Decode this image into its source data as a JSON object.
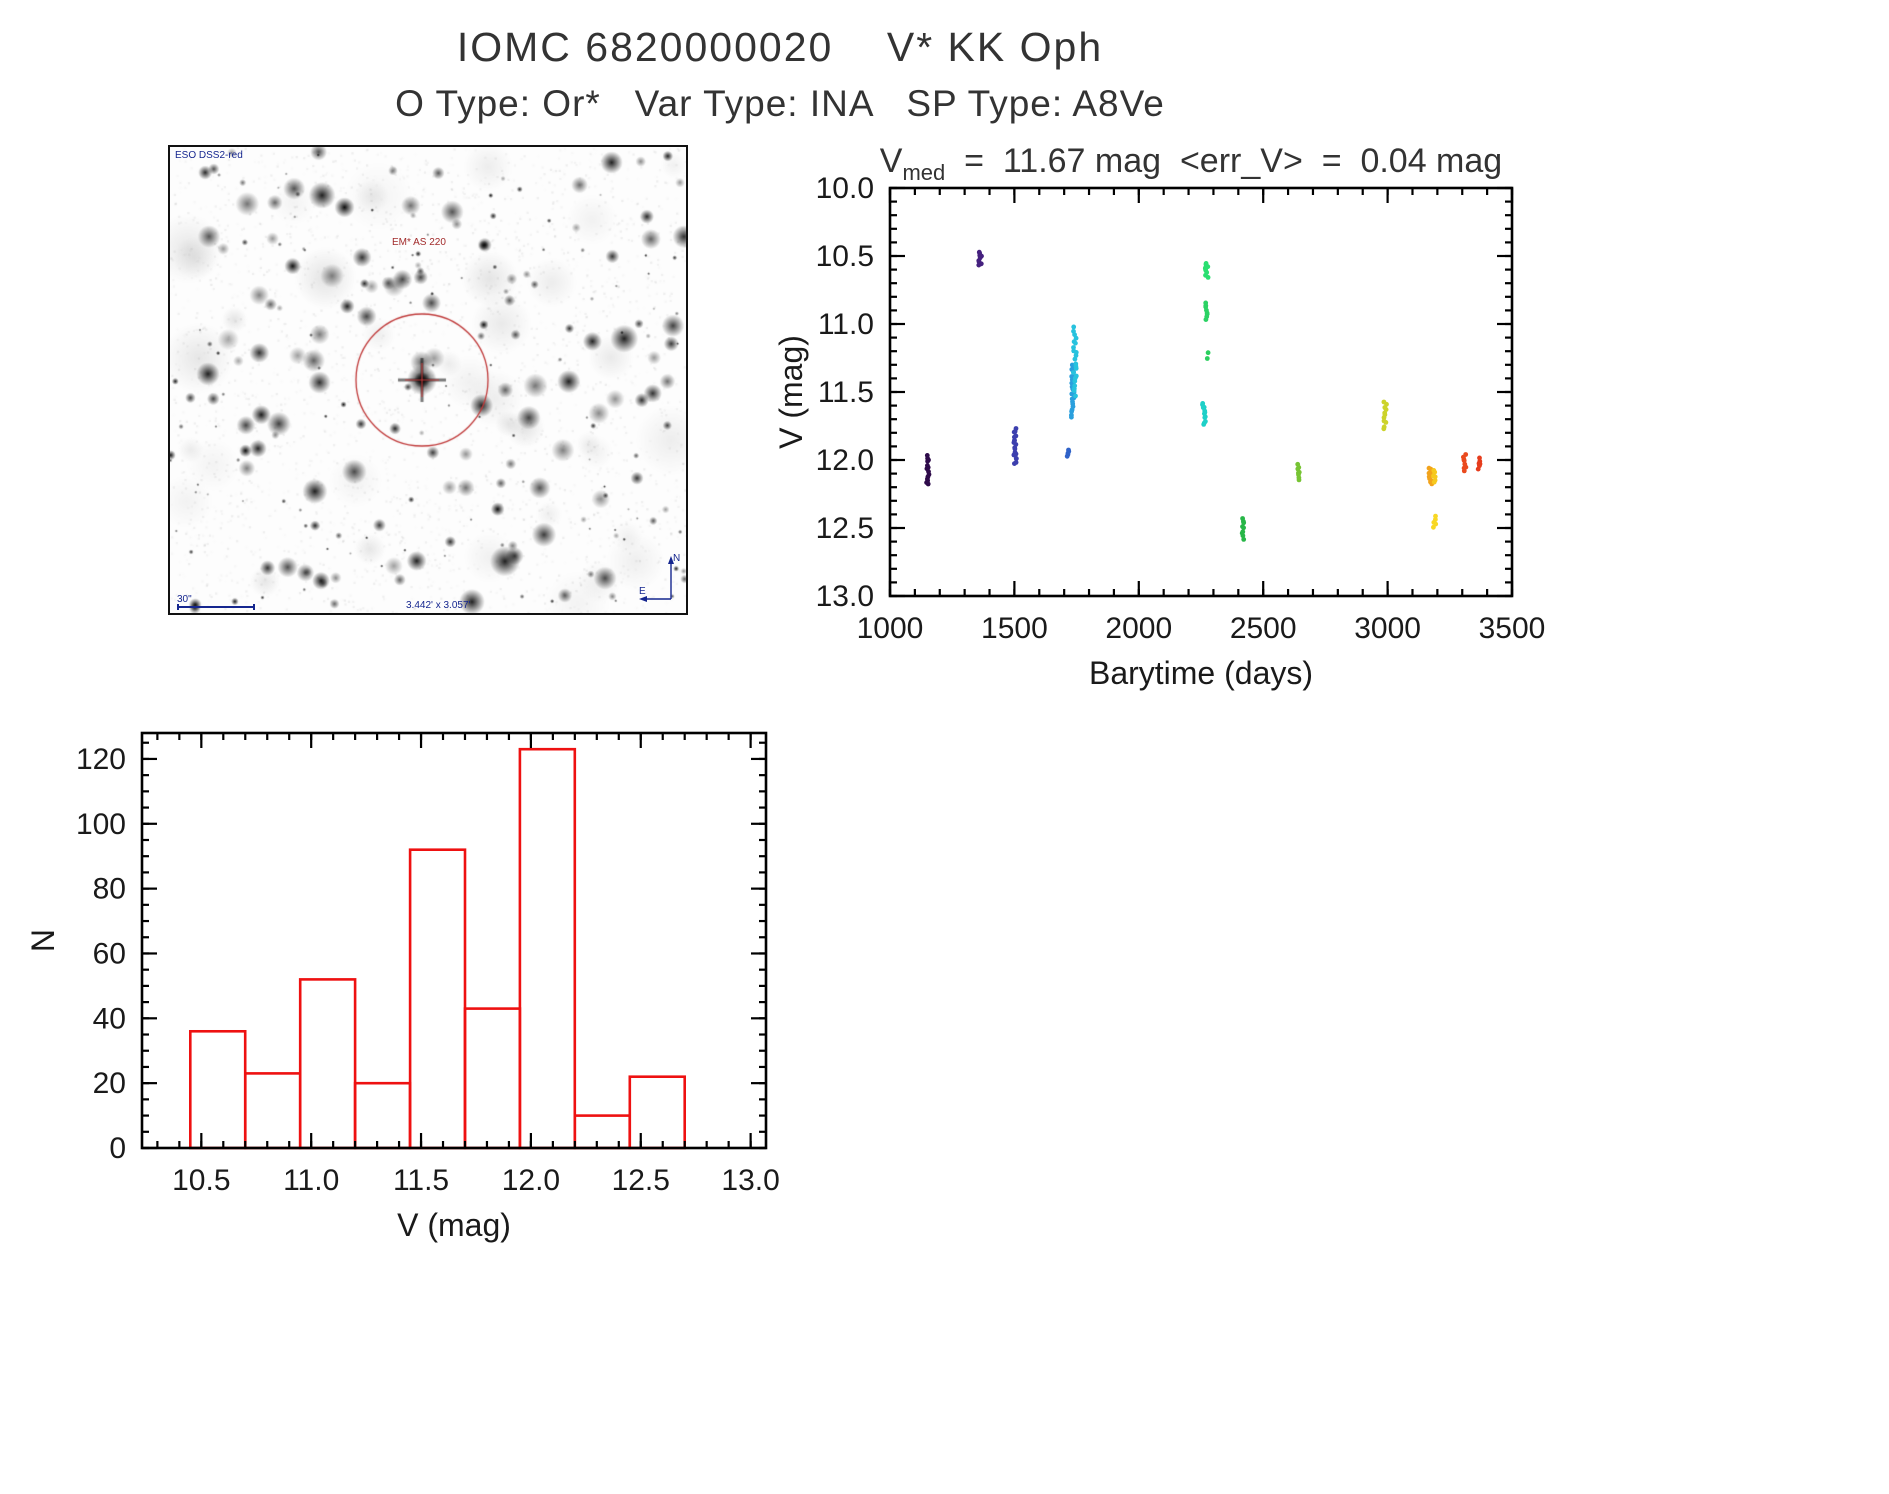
{
  "page": {
    "title": "IOMC 6820000020    V* KK Oph",
    "subtitle": "O Type: Or*   Var Type: INA   SP Type: A8Ve"
  },
  "finder_image": {
    "survey_label": "ESO DSS2-red",
    "target_label": "EM* AS 220",
    "scale_bar_label": "30\"",
    "size_label": "3.442' x 3.057'",
    "compass_north": "N",
    "compass_east": "E",
    "circle_color": "#c03a3a",
    "annotation_color": "#15268f",
    "target_label_color": "#a22b2b"
  },
  "lightcurve": {
    "title_v": "V",
    "title_sub": "med",
    "title_rest": "  =  11.67 mag  <err_V>  =  0.04 mag"
  },
  "chart_data": [
    {
      "type": "scatter",
      "title": "V_med = 11.67 mag  <err_V> = 0.04 mag",
      "xlabel": "Barytime (days)",
      "ylabel": "V (mag)",
      "xlim": [
        1000,
        3500
      ],
      "ylim": [
        10.0,
        13.0
      ],
      "y_increases_downward": true,
      "xticks": [
        1000,
        1500,
        2000,
        2500,
        3000,
        3500
      ],
      "yticks": [
        10.0,
        10.5,
        11.0,
        11.5,
        12.0,
        12.5,
        13.0
      ],
      "x_minor": 100,
      "y_minor": 0.1,
      "legend": "none",
      "grid": false,
      "clusters": [
        {
          "x": 1153,
          "y_min": 11.97,
          "y_max": 12.18,
          "n": 14,
          "color": "#2e0b4a"
        },
        {
          "x": 1362,
          "y_min": 10.47,
          "y_max": 10.56,
          "n": 9,
          "color": "#45217f"
        },
        {
          "x": 1502,
          "y_min": 11.77,
          "y_max": 12.03,
          "n": 18,
          "color": "#3c3fae"
        },
        {
          "x": 1715,
          "y_min": 11.92,
          "y_max": 11.98,
          "n": 5,
          "color": "#2f62c8"
        },
        {
          "x": 1734,
          "y_min": 11.3,
          "y_max": 11.68,
          "n": 22,
          "color": "#2a9fdd"
        },
        {
          "x": 1743,
          "y_min": 11.03,
          "y_max": 11.52,
          "n": 22,
          "color": "#27c2de"
        },
        {
          "x": 2262,
          "y_min": 11.58,
          "y_max": 11.74,
          "n": 12,
          "color": "#1fd0c8"
        },
        {
          "x": 2273,
          "y_min": 10.55,
          "y_max": 10.65,
          "n": 9,
          "color": "#2adf71"
        },
        {
          "x": 2274,
          "y_min": 10.85,
          "y_max": 10.96,
          "n": 8,
          "color": "#2bd264"
        },
        {
          "x": 2279,
          "y_min": 11.21,
          "y_max": 11.26,
          "n": 2,
          "color": "#2bcf5e"
        },
        {
          "x": 2420,
          "y_min": 12.43,
          "y_max": 12.58,
          "n": 9,
          "color": "#27b647"
        },
        {
          "x": 2640,
          "y_min": 12.03,
          "y_max": 12.15,
          "n": 8,
          "color": "#77c434"
        },
        {
          "x": 2990,
          "y_min": 11.58,
          "y_max": 11.77,
          "n": 11,
          "color": "#ccd32b"
        },
        {
          "x": 3172,
          "y_min": 12.06,
          "y_max": 12.18,
          "n": 10,
          "color": "#f2a31c"
        },
        {
          "x": 3186,
          "y_min": 12.08,
          "y_max": 12.16,
          "n": 6,
          "color": "#f6c91e"
        },
        {
          "x": 3190,
          "y_min": 12.42,
          "y_max": 12.49,
          "n": 5,
          "color": "#f8d723"
        },
        {
          "x": 3310,
          "y_min": 11.96,
          "y_max": 12.08,
          "n": 8,
          "color": "#ea4a1e"
        },
        {
          "x": 3370,
          "y_min": 11.99,
          "y_max": 12.06,
          "n": 6,
          "color": "#e63c1c"
        }
      ]
    },
    {
      "type": "bar",
      "title": "",
      "xlabel": "V (mag)",
      "ylabel": "N",
      "bin_edges": [
        10.45,
        10.7,
        10.95,
        11.2,
        11.45,
        11.7,
        11.95,
        12.2,
        12.45,
        12.7
      ],
      "counts": [
        36,
        23,
        52,
        20,
        92,
        43,
        123,
        10,
        22
      ],
      "xlim": [
        10.23,
        13.07
      ],
      "ylim": [
        0,
        128
      ],
      "xticks": [
        10.5,
        11.0,
        11.5,
        12.0,
        12.5,
        13.0
      ],
      "yticks": [
        0,
        20,
        40,
        60,
        80,
        100,
        120
      ],
      "x_minor": 0.1,
      "y_minor": 5,
      "grid": false,
      "bar_color": "#ee1111"
    }
  ]
}
